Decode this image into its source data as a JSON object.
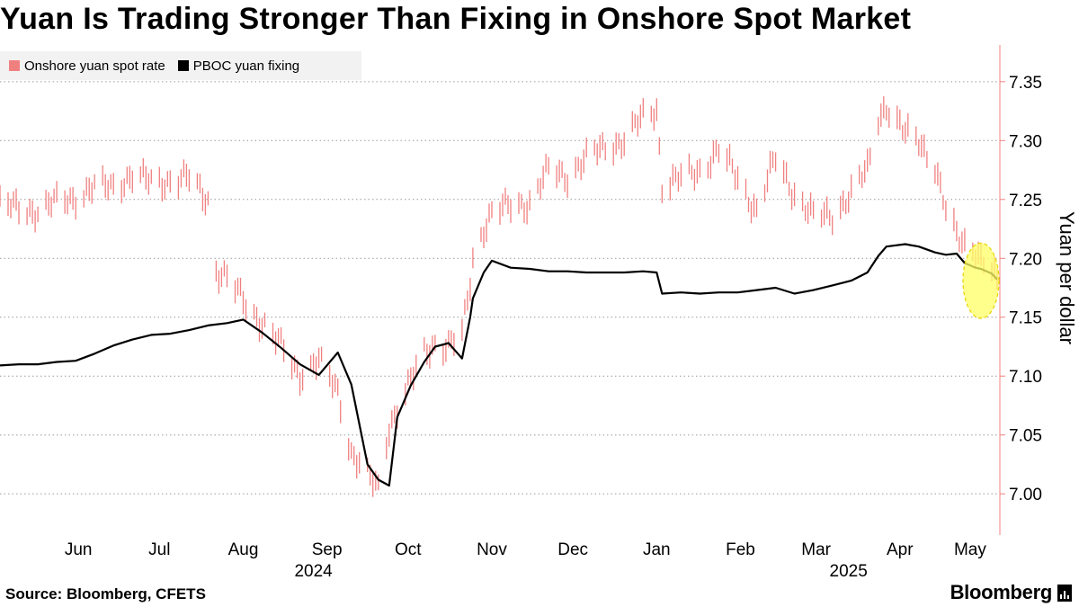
{
  "title": "Yuan Is Trading Stronger Than Fixing in Onshore Spot Market",
  "legend": {
    "spot_label": "Onshore yuan spot rate",
    "fixing_label": "PBOC yuan fixing"
  },
  "source": "Source: Bloomberg, CFETS",
  "brand": "Bloomberg",
  "colors": {
    "spot": "#f08080",
    "fixing": "#000000",
    "highlight": "#ffff66",
    "axis": "#f08080"
  },
  "chart_data": {
    "type": "line",
    "title": "Yuan Is Trading Stronger Than Fixing in Onshore Spot Market",
    "ylabel": "Yuan per dollar",
    "ylim": [
      6.965,
      7.385
    ],
    "yticks": [
      7.0,
      7.05,
      7.1,
      7.15,
      7.2,
      7.25,
      7.3,
      7.35
    ],
    "xlim": [
      "2024-05-17",
      "2025-05-22"
    ],
    "x_month_labels": [
      {
        "label": "Jun",
        "date": "2024-06-15"
      },
      {
        "label": "Jul",
        "date": "2024-07-15"
      },
      {
        "label": "Aug",
        "date": "2024-08-15"
      },
      {
        "label": "Sep",
        "date": "2024-09-15"
      },
      {
        "label": "Oct",
        "date": "2024-10-15"
      },
      {
        "label": "Nov",
        "date": "2024-11-15"
      },
      {
        "label": "Dec",
        "date": "2024-12-15"
      },
      {
        "label": "Jan",
        "date": "2025-01-15"
      },
      {
        "label": "Feb",
        "date": "2025-02-15"
      },
      {
        "label": "Mar",
        "date": "2025-03-15"
      },
      {
        "label": "Apr",
        "date": "2025-04-15"
      },
      {
        "label": "May",
        "date": "2025-05-11"
      }
    ],
    "x_year_labels": [
      {
        "label": "2024",
        "date": "2024-09-10"
      },
      {
        "label": "2025",
        "date": "2025-03-27"
      }
    ],
    "grid": "horizontal dotted",
    "legend_position": "top-left",
    "highlight": {
      "date": "2025-05-15",
      "y_center": 7.181,
      "y_halfheight": 0.032
    },
    "series": [
      {
        "name": "PBOC yuan fixing",
        "style": "line",
        "points": [
          [
            "2024-05-17",
            7.109
          ],
          [
            "2024-05-24",
            7.11
          ],
          [
            "2024-05-31",
            7.11
          ],
          [
            "2024-06-07",
            7.112
          ],
          [
            "2024-06-14",
            7.113
          ],
          [
            "2024-06-21",
            7.119
          ],
          [
            "2024-06-28",
            7.126
          ],
          [
            "2024-07-05",
            7.131
          ],
          [
            "2024-07-12",
            7.135
          ],
          [
            "2024-07-19",
            7.136
          ],
          [
            "2024-07-26",
            7.139
          ],
          [
            "2024-08-02",
            7.143
          ],
          [
            "2024-08-09",
            7.145
          ],
          [
            "2024-08-15",
            7.148
          ],
          [
            "2024-08-22",
            7.137
          ],
          [
            "2024-08-29",
            7.124
          ],
          [
            "2024-09-05",
            7.11
          ],
          [
            "2024-09-12",
            7.101
          ],
          [
            "2024-09-19",
            7.12
          ],
          [
            "2024-09-24",
            7.093
          ],
          [
            "2024-09-30",
            7.025
          ],
          [
            "2024-10-04",
            7.012
          ],
          [
            "2024-10-08",
            7.007
          ],
          [
            "2024-10-11",
            7.065
          ],
          [
            "2024-10-16",
            7.092
          ],
          [
            "2024-10-21",
            7.112
          ],
          [
            "2024-10-25",
            7.125
          ],
          [
            "2024-10-30",
            7.128
          ],
          [
            "2024-11-04",
            7.115
          ],
          [
            "2024-11-07",
            7.15
          ],
          [
            "2024-11-08",
            7.166
          ],
          [
            "2024-11-12",
            7.188
          ],
          [
            "2024-11-15",
            7.198
          ],
          [
            "2024-11-22",
            7.192
          ],
          [
            "2024-11-29",
            7.191
          ],
          [
            "2024-12-06",
            7.189
          ],
          [
            "2024-12-13",
            7.189
          ],
          [
            "2024-12-20",
            7.188
          ],
          [
            "2024-12-27",
            7.188
          ],
          [
            "2025-01-03",
            7.188
          ],
          [
            "2025-01-10",
            7.189
          ],
          [
            "2025-01-15",
            7.188
          ],
          [
            "2025-01-17",
            7.17
          ],
          [
            "2025-01-24",
            7.171
          ],
          [
            "2025-01-31",
            7.17
          ],
          [
            "2025-02-07",
            7.171
          ],
          [
            "2025-02-14",
            7.171
          ],
          [
            "2025-02-21",
            7.173
          ],
          [
            "2025-02-28",
            7.175
          ],
          [
            "2025-03-07",
            7.17
          ],
          [
            "2025-03-14",
            7.173
          ],
          [
            "2025-03-21",
            7.177
          ],
          [
            "2025-03-28",
            7.181
          ],
          [
            "2025-04-03",
            7.188
          ],
          [
            "2025-04-07",
            7.202
          ],
          [
            "2025-04-10",
            7.21
          ],
          [
            "2025-04-17",
            7.212
          ],
          [
            "2025-04-22",
            7.21
          ],
          [
            "2025-04-28",
            7.205
          ],
          [
            "2025-05-02",
            7.203
          ],
          [
            "2025-05-06",
            7.204
          ],
          [
            "2025-05-09",
            7.196
          ],
          [
            "2025-05-13",
            7.192
          ],
          [
            "2025-05-15",
            7.191
          ],
          [
            "2025-05-19",
            7.187
          ],
          [
            "2025-05-21",
            7.182
          ]
        ]
      },
      {
        "name": "Onshore yuan spot rate",
        "style": "daily high-low bars",
        "points": [
          [
            "2024-05-17",
            7.245
          ],
          [
            "2024-05-24",
            7.243
          ],
          [
            "2024-05-31",
            7.24
          ],
          [
            "2024-06-07",
            7.248
          ],
          [
            "2024-06-14",
            7.252
          ],
          [
            "2024-06-21",
            7.26
          ],
          [
            "2024-06-28",
            7.262
          ],
          [
            "2024-07-05",
            7.27
          ],
          [
            "2024-07-12",
            7.265
          ],
          [
            "2024-07-19",
            7.266
          ],
          [
            "2024-07-26",
            7.268
          ],
          [
            "2024-08-02",
            7.25
          ],
          [
            "2024-08-05",
            7.19
          ],
          [
            "2024-08-09",
            7.182
          ],
          [
            "2024-08-15",
            7.165
          ],
          [
            "2024-08-22",
            7.145
          ],
          [
            "2024-08-29",
            7.125
          ],
          [
            "2024-09-05",
            7.102
          ],
          [
            "2024-09-12",
            7.112
          ],
          [
            "2024-09-19",
            7.088
          ],
          [
            "2024-09-24",
            7.035
          ],
          [
            "2024-09-30",
            7.015
          ],
          [
            "2024-10-04",
            7.005
          ],
          [
            "2024-10-08",
            7.058
          ],
          [
            "2024-10-11",
            7.072
          ],
          [
            "2024-10-16",
            7.095
          ],
          [
            "2024-10-21",
            7.12
          ],
          [
            "2024-10-25",
            7.128
          ],
          [
            "2024-10-30",
            7.125
          ],
          [
            "2024-11-04",
            7.135
          ],
          [
            "2024-11-07",
            7.18
          ],
          [
            "2024-11-08",
            7.2
          ],
          [
            "2024-11-12",
            7.226
          ],
          [
            "2024-11-15",
            7.238
          ],
          [
            "2024-11-22",
            7.245
          ],
          [
            "2024-11-29",
            7.247
          ],
          [
            "2024-12-06",
            7.275
          ],
          [
            "2024-12-13",
            7.27
          ],
          [
            "2024-12-20",
            7.285
          ],
          [
            "2024-12-27",
            7.295
          ],
          [
            "2025-01-03",
            7.3
          ],
          [
            "2025-01-10",
            7.32
          ],
          [
            "2025-01-15",
            7.327
          ],
          [
            "2025-01-17",
            7.262
          ],
          [
            "2025-01-24",
            7.268
          ],
          [
            "2025-01-31",
            7.275
          ],
          [
            "2025-02-07",
            7.292
          ],
          [
            "2025-02-14",
            7.268
          ],
          [
            "2025-02-21",
            7.24
          ],
          [
            "2025-02-28",
            7.285
          ],
          [
            "2025-03-07",
            7.255
          ],
          [
            "2025-03-14",
            7.235
          ],
          [
            "2025-03-21",
            7.237
          ],
          [
            "2025-03-28",
            7.255
          ],
          [
            "2025-04-03",
            7.275
          ],
          [
            "2025-04-07",
            7.32
          ],
          [
            "2025-04-10",
            7.33
          ],
          [
            "2025-04-17",
            7.305
          ],
          [
            "2025-04-22",
            7.3
          ],
          [
            "2025-04-28",
            7.28
          ],
          [
            "2025-05-02",
            7.24
          ],
          [
            "2025-05-06",
            7.218
          ],
          [
            "2025-05-09",
            7.212
          ],
          [
            "2025-05-13",
            7.21
          ],
          [
            "2025-05-15",
            7.2
          ],
          [
            "2025-05-19",
            7.19
          ],
          [
            "2025-05-21",
            7.176
          ]
        ]
      }
    ]
  }
}
